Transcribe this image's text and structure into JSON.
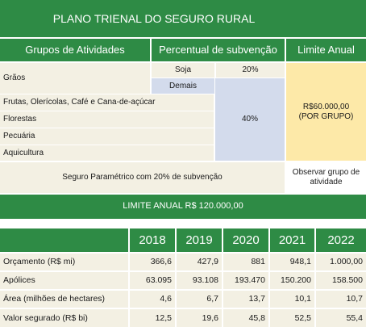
{
  "top_table": {
    "title": "PLANO TRIENAL DO SEGURO RURAL",
    "headers": [
      "Grupos de Atividades",
      "Percentual de subvenção",
      "Limite Anual"
    ],
    "graos_label": "Grãos",
    "soja_label": "Soja",
    "soja_pct": "20%",
    "demais_label": "Demais",
    "rows": [
      "Frutas, Olerícolas, Café e Cana-de-açúcar",
      "Florestas",
      "Pecuária",
      "Aquicultura"
    ],
    "group_pct": "40%",
    "limite_line1": "R$60.000,00",
    "limite_line2": "(POR GRUPO)",
    "parametrico": "Seguro Paramétrico com 20% de subvenção",
    "observar": "Observar grupo de atividade",
    "limite_anual_total": "LIMITE ANUAL R$ 120.000,00"
  },
  "bottom_table": {
    "years": [
      "2018",
      "2019",
      "2020",
      "2021",
      "2022"
    ],
    "rows": [
      {
        "label": "Orçamento (R$ mi)",
        "values": [
          "366,6",
          "427,9",
          "881",
          "948,1",
          "1.000,00"
        ]
      },
      {
        "label": "Apólices",
        "values": [
          "63.095",
          "93.108",
          "193.470",
          "150.200",
          "158.500"
        ]
      },
      {
        "label": "Área (milhões de hectares)",
        "values": [
          "4,6",
          "6,7",
          "13,7",
          "10,1",
          "10,7"
        ]
      },
      {
        "label": "Valor segurado (R$ bi)",
        "values": [
          "12,5",
          "19,6",
          "45,8",
          "52,5",
          "55,4"
        ]
      }
    ]
  },
  "colors": {
    "green": "#2e8b45",
    "beige": "#f3f0e3",
    "bluegray": "#d3dbec",
    "yellow": "#fde9a8"
  }
}
